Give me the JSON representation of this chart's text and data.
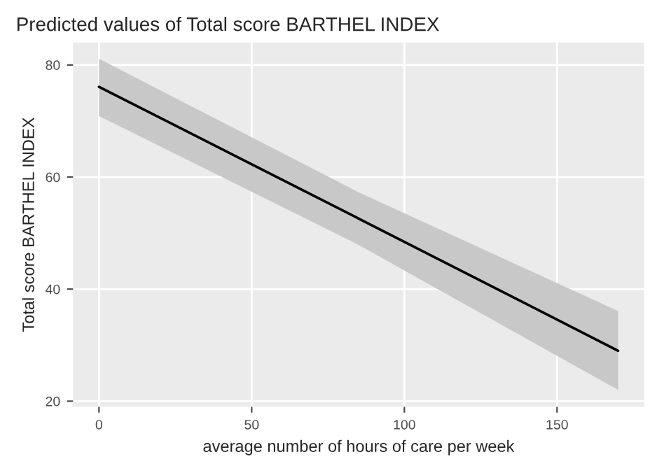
{
  "chart_data": {
    "type": "line",
    "title": "Predicted values of Total score BARTHEL INDEX",
    "xlabel": "average number of hours of care per week",
    "ylabel": "Total score BARTHEL INDEX",
    "series": [
      {
        "color": "#000000",
        "x": [
          0,
          85,
          170
        ],
        "values": [
          76.1,
          52.6,
          29.0
        ],
        "lower": [
          70.9,
          47.9,
          22.0
        ],
        "upper": [
          81.1,
          57.3,
          36.1
        ]
      }
    ],
    "xlim": [
      -8.5,
      178.5
    ],
    "ylim": [
      19,
      84
    ],
    "xticks": [
      0,
      50,
      100,
      150
    ],
    "yticks": [
      20,
      40,
      60,
      80
    ],
    "grid": true,
    "legend": false
  }
}
